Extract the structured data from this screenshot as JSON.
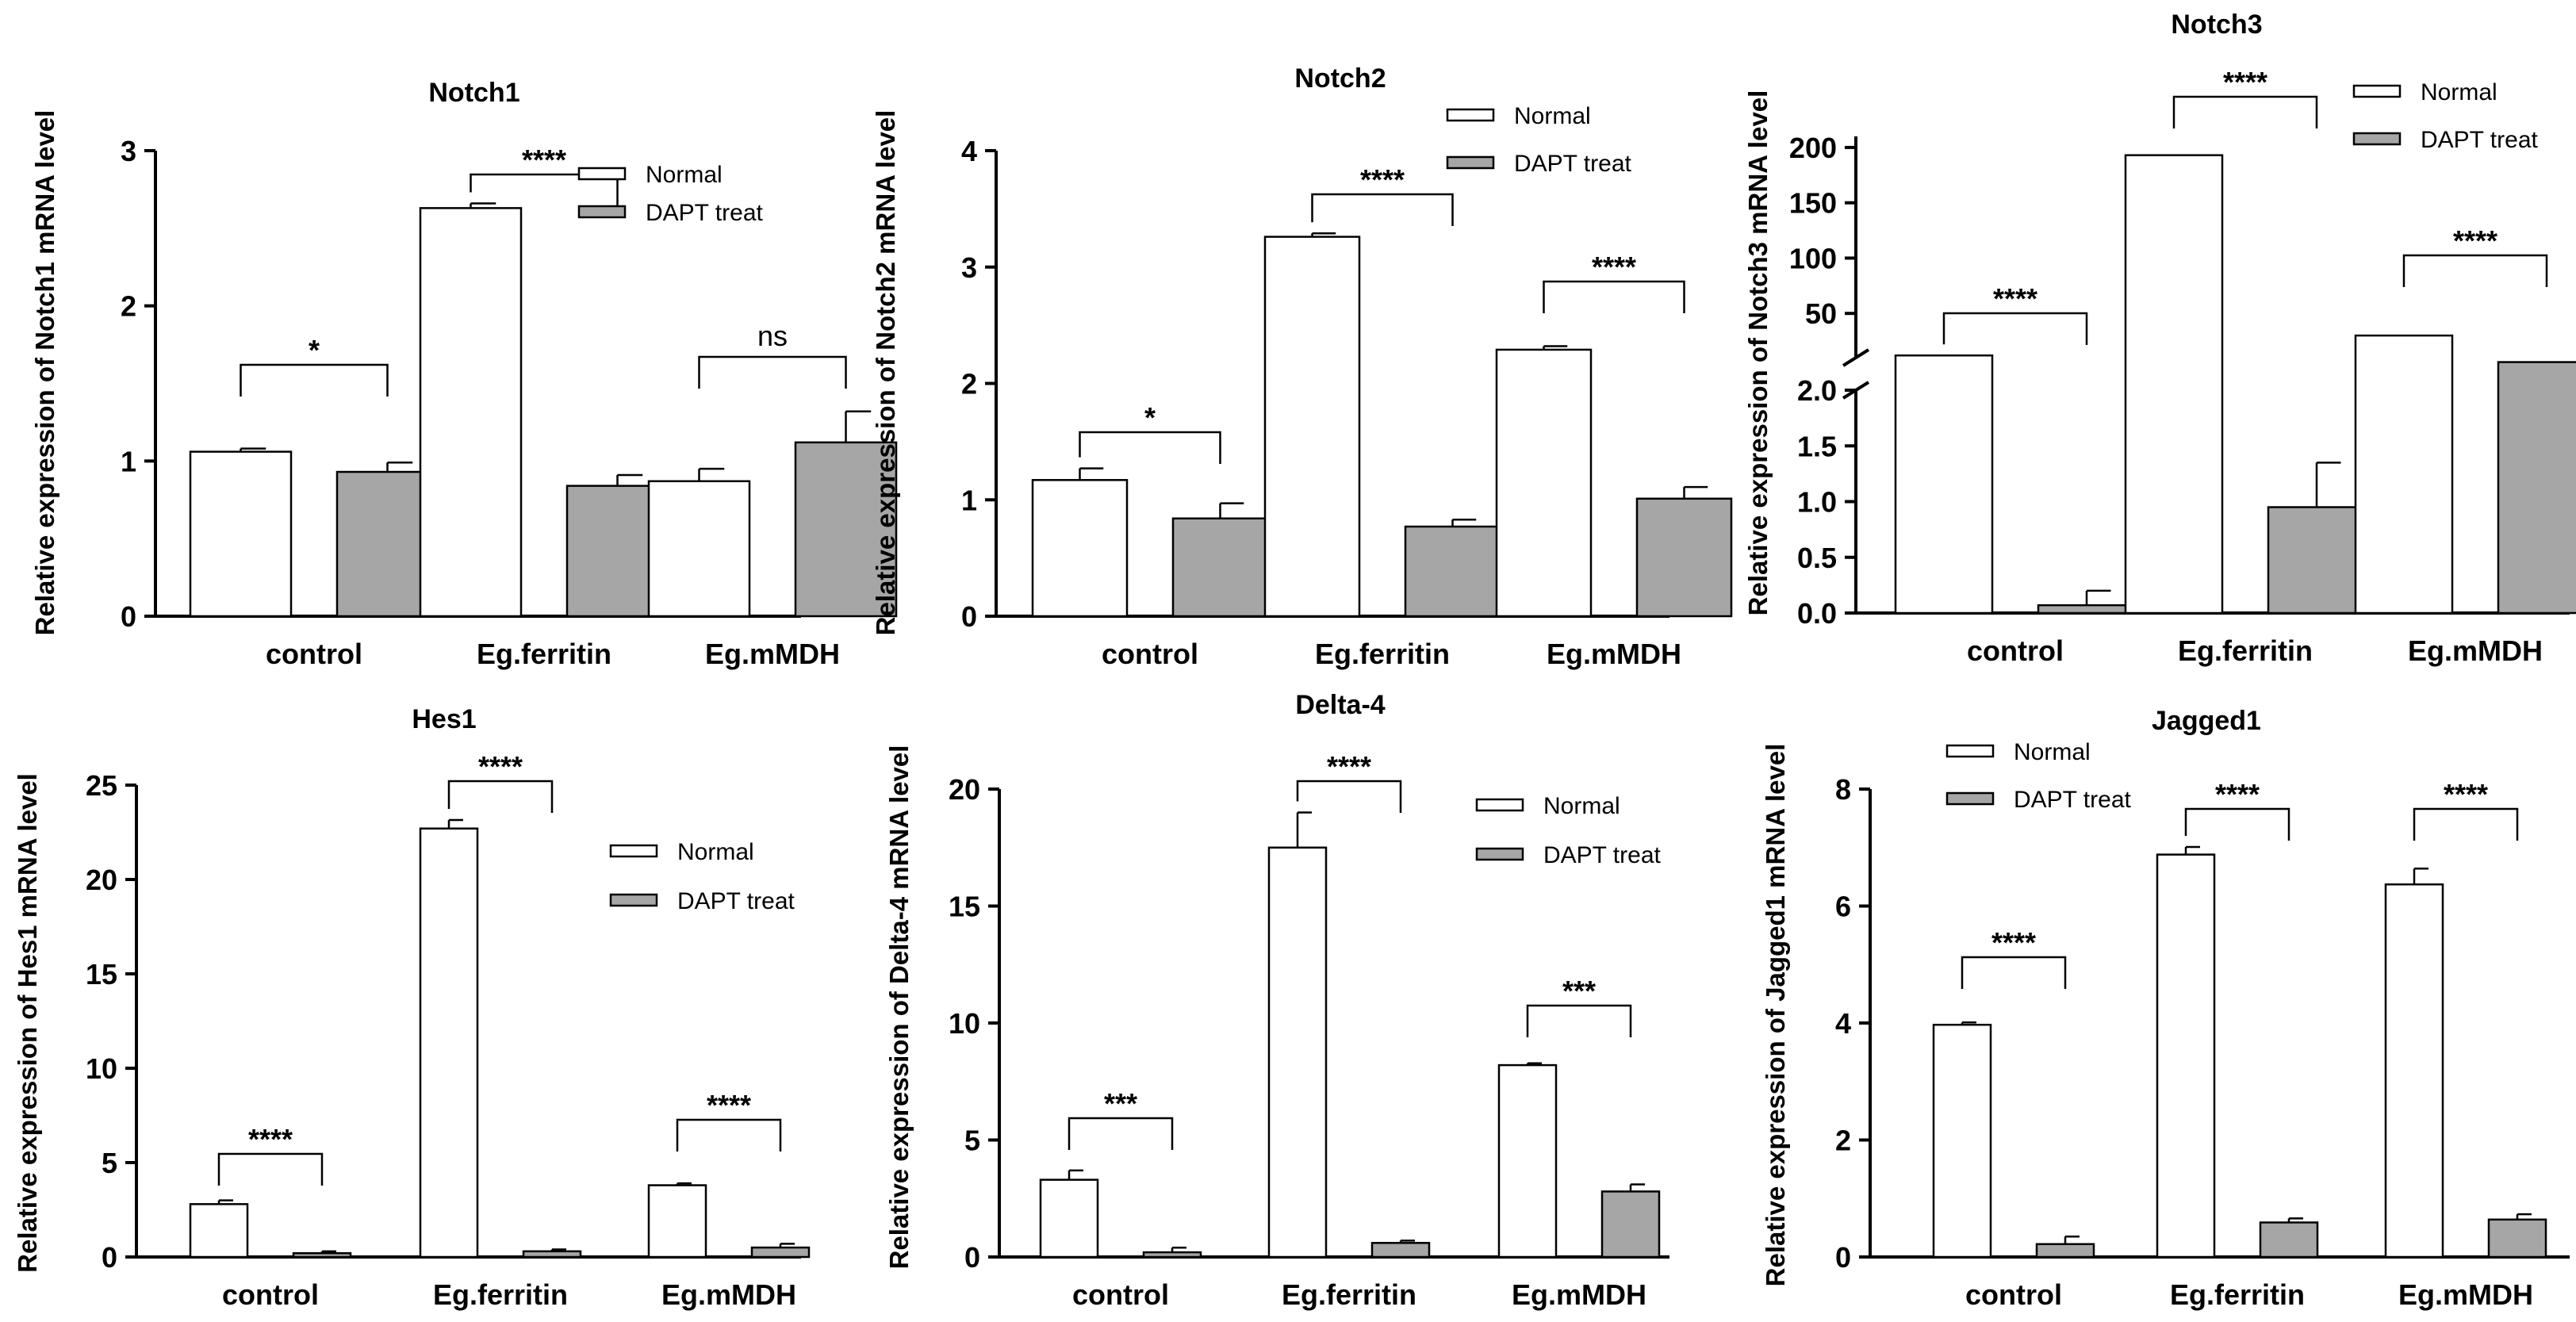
{
  "colors": {
    "normal_fill": "#ffffff",
    "dapt_fill": "#a6a6a6",
    "stroke": "#000000"
  },
  "chart_data": [
    {
      "type": "bar",
      "title": "Notch1",
      "ylabel": "Relative expression of Notch1 mRNA level",
      "xlabel": "",
      "categories": [
        "control",
        "Eg.ferritin",
        "Eg.mMDH"
      ],
      "ylim": [
        0,
        3
      ],
      "yticks": [
        "0",
        "1",
        "2",
        "3"
      ],
      "yticks_values": [
        0,
        1,
        2,
        3
      ],
      "legend": [
        "Normal",
        "DAPT treat"
      ],
      "legend_position": "top-right",
      "series": [
        {
          "name": "Normal",
          "values": [
            1.06,
            2.63,
            0.87
          ],
          "errors": [
            0.02,
            0.03,
            0.08
          ]
        },
        {
          "name": "DAPT treat",
          "values": [
            0.93,
            0.84,
            1.12
          ],
          "errors": [
            0.06,
            0.07,
            0.2
          ]
        }
      ],
      "significance": [
        "*",
        "****",
        "ns"
      ]
    },
    {
      "type": "bar",
      "title": "Notch2",
      "ylabel": "Relative expression of Notch2 mRNA level",
      "xlabel": "",
      "categories": [
        "control",
        "Eg.ferritin",
        "Eg.mMDH"
      ],
      "ylim": [
        0,
        4
      ],
      "yticks": [
        "0",
        "1",
        "2",
        "3",
        "4"
      ],
      "yticks_values": [
        0,
        1,
        2,
        3,
        4
      ],
      "legend": [
        "Normal",
        "DAPT treat"
      ],
      "legend_position": "top-right",
      "series": [
        {
          "name": "Normal",
          "values": [
            1.17,
            3.26,
            2.29
          ],
          "errors": [
            0.1,
            0.03,
            0.03
          ]
        },
        {
          "name": "DAPT treat",
          "values": [
            0.84,
            0.77,
            1.01
          ],
          "errors": [
            0.13,
            0.06,
            0.1
          ]
        }
      ],
      "significance": [
        "*",
        "****",
        "****"
      ]
    },
    {
      "type": "bar",
      "title": "Notch3",
      "ylabel": "Relative expression of Notch3 mRNA level",
      "xlabel": "",
      "categories": [
        "control",
        "Eg.ferritin",
        "Eg.mMDH"
      ],
      "axis_break": {
        "lower": [
          0,
          2
        ],
        "upper": [
          10,
          210
        ]
      },
      "yticks_lower": [
        "0.0",
        "0.5",
        "1.0",
        "1.5",
        "2.0"
      ],
      "yticks_lower_values": [
        0,
        0.5,
        1.0,
        1.5,
        2.0
      ],
      "yticks_upper": [
        "50",
        "100",
        "150",
        "200"
      ],
      "yticks_upper_values": [
        50,
        100,
        150,
        200
      ],
      "legend": [
        "Normal",
        "DAPT treat"
      ],
      "legend_position": "top-right",
      "series": [
        {
          "name": "Normal",
          "values": [
            12,
            193,
            30
          ],
          "errors": [
            0,
            0,
            0
          ]
        },
        {
          "name": "DAPT treat",
          "values": [
            0.07,
            0.95,
            6
          ],
          "errors": [
            0.13,
            0.4,
            0
          ]
        }
      ],
      "significance": [
        "****",
        "****",
        "****"
      ]
    },
    {
      "type": "bar",
      "title": "Hes1",
      "ylabel": "Relative expression of Hes1 mRNA level",
      "xlabel": "",
      "categories": [
        "control",
        "Eg.ferritin",
        "Eg.mMDH"
      ],
      "ylim": [
        0,
        25
      ],
      "yticks": [
        "0",
        "5",
        "10",
        "15",
        "20",
        "25"
      ],
      "yticks_values": [
        0,
        5,
        10,
        15,
        20,
        25
      ],
      "legend": [
        "Normal",
        "DAPT treat"
      ],
      "legend_position": "top-right",
      "series": [
        {
          "name": "Normal",
          "values": [
            2.8,
            22.7,
            3.8
          ],
          "errors": [
            0.2,
            0.45,
            0.1
          ]
        },
        {
          "name": "DAPT treat",
          "values": [
            0.2,
            0.3,
            0.5
          ],
          "errors": [
            0.1,
            0.1,
            0.2
          ]
        }
      ],
      "significance": [
        "****",
        "****",
        "****"
      ]
    },
    {
      "type": "bar",
      "title": "Delta-4",
      "ylabel": "Relative expression of Delta-4 mRNA level",
      "xlabel": "",
      "categories": [
        "control",
        "Eg.ferritin",
        "Eg.mMDH"
      ],
      "ylim": [
        0,
        20
      ],
      "yticks": [
        "0",
        "5",
        "10",
        "15",
        "20"
      ],
      "yticks_values": [
        0,
        5,
        10,
        15,
        20
      ],
      "legend": [
        "Normal",
        "DAPT treat"
      ],
      "legend_position": "top-right",
      "series": [
        {
          "name": "Normal",
          "values": [
            3.3,
            17.5,
            8.2
          ],
          "errors": [
            0.4,
            1.5,
            0.08
          ]
        },
        {
          "name": "DAPT treat",
          "values": [
            0.2,
            0.6,
            2.8
          ],
          "errors": [
            0.2,
            0.1,
            0.3
          ]
        }
      ],
      "significance": [
        "***",
        "****",
        "***"
      ]
    },
    {
      "type": "bar",
      "title": "Jagged1",
      "ylabel": "Relative expression of Jagged1 mRNA level",
      "xlabel": "",
      "categories": [
        "control",
        "Eg.ferritin",
        "Eg.mMDH"
      ],
      "ylim": [
        0,
        8
      ],
      "yticks": [
        "0",
        "2",
        "4",
        "6",
        "8"
      ],
      "yticks_values": [
        0,
        2,
        4,
        6,
        8
      ],
      "legend": [
        "Normal",
        "DAPT treat"
      ],
      "legend_position": "top-left",
      "series": [
        {
          "name": "Normal",
          "values": [
            3.97,
            6.88,
            6.37
          ],
          "errors": [
            0.04,
            0.13,
            0.27
          ]
        },
        {
          "name": "DAPT treat",
          "values": [
            0.22,
            0.59,
            0.64
          ],
          "errors": [
            0.13,
            0.07,
            0.09
          ]
        }
      ],
      "significance": [
        "****",
        "****",
        "****"
      ]
    }
  ]
}
